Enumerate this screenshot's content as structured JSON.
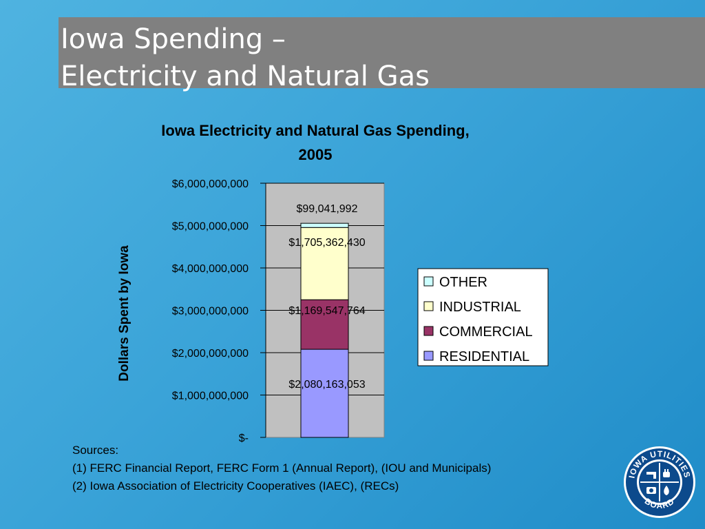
{
  "slide": {
    "title_line1": "Iowa Spending –",
    "title_line2": "Electricity and Natural Gas"
  },
  "chart_data": {
    "type": "bar",
    "stacked": true,
    "title_line1": "Iowa Electricity and Natural Gas Spending,",
    "title_line2": "2005",
    "xlabel": "",
    "ylabel": "Dollars Spent by Iowa",
    "ylim": [
      0,
      6000000000
    ],
    "yticks": [
      {
        "value": 0,
        "label": "$-"
      },
      {
        "value": 1000000000,
        "label": "$1,000,000,000"
      },
      {
        "value": 2000000000,
        "label": "$2,000,000,000"
      },
      {
        "value": 3000000000,
        "label": "$3,000,000,000"
      },
      {
        "value": 4000000000,
        "label": "$4,000,000,000"
      },
      {
        "value": 5000000000,
        "label": "$5,000,000,000"
      },
      {
        "value": 6000000000,
        "label": "$6,000,000,000"
      }
    ],
    "grid": true,
    "plot_background": "#c0c0c0",
    "legend_position": "right",
    "series": [
      {
        "name": "RESIDENTIAL",
        "value": 2080163053,
        "label": "$2,080,163,053",
        "color": "#9999ff"
      },
      {
        "name": "COMMERCIAL",
        "value": 1169547764,
        "label": "$1,169,547,764",
        "color": "#993366"
      },
      {
        "name": "INDUSTRIAL",
        "value": 1705362430,
        "label": "$1,705,362,430",
        "color": "#ffffcc"
      },
      {
        "name": "OTHER",
        "value": 99041992,
        "label": "$99,041,992",
        "color": "#ccffff"
      }
    ],
    "legend_order": [
      "OTHER",
      "INDUSTRIAL",
      "COMMERCIAL",
      "RESIDENTIAL"
    ]
  },
  "sources": {
    "heading": "Sources:",
    "line1": "(1) FERC Financial Report, FERC Form 1 (Annual Report), (IOU and Municipals)",
    "line2": "(2) Iowa Association of Electricity Cooperatives (IAEC), (RECs)"
  },
  "logo": {
    "text_top": "IOWA UTILITIES",
    "text_bottom": "BOARD",
    "icon": "iowa-utilities-board-seal"
  }
}
